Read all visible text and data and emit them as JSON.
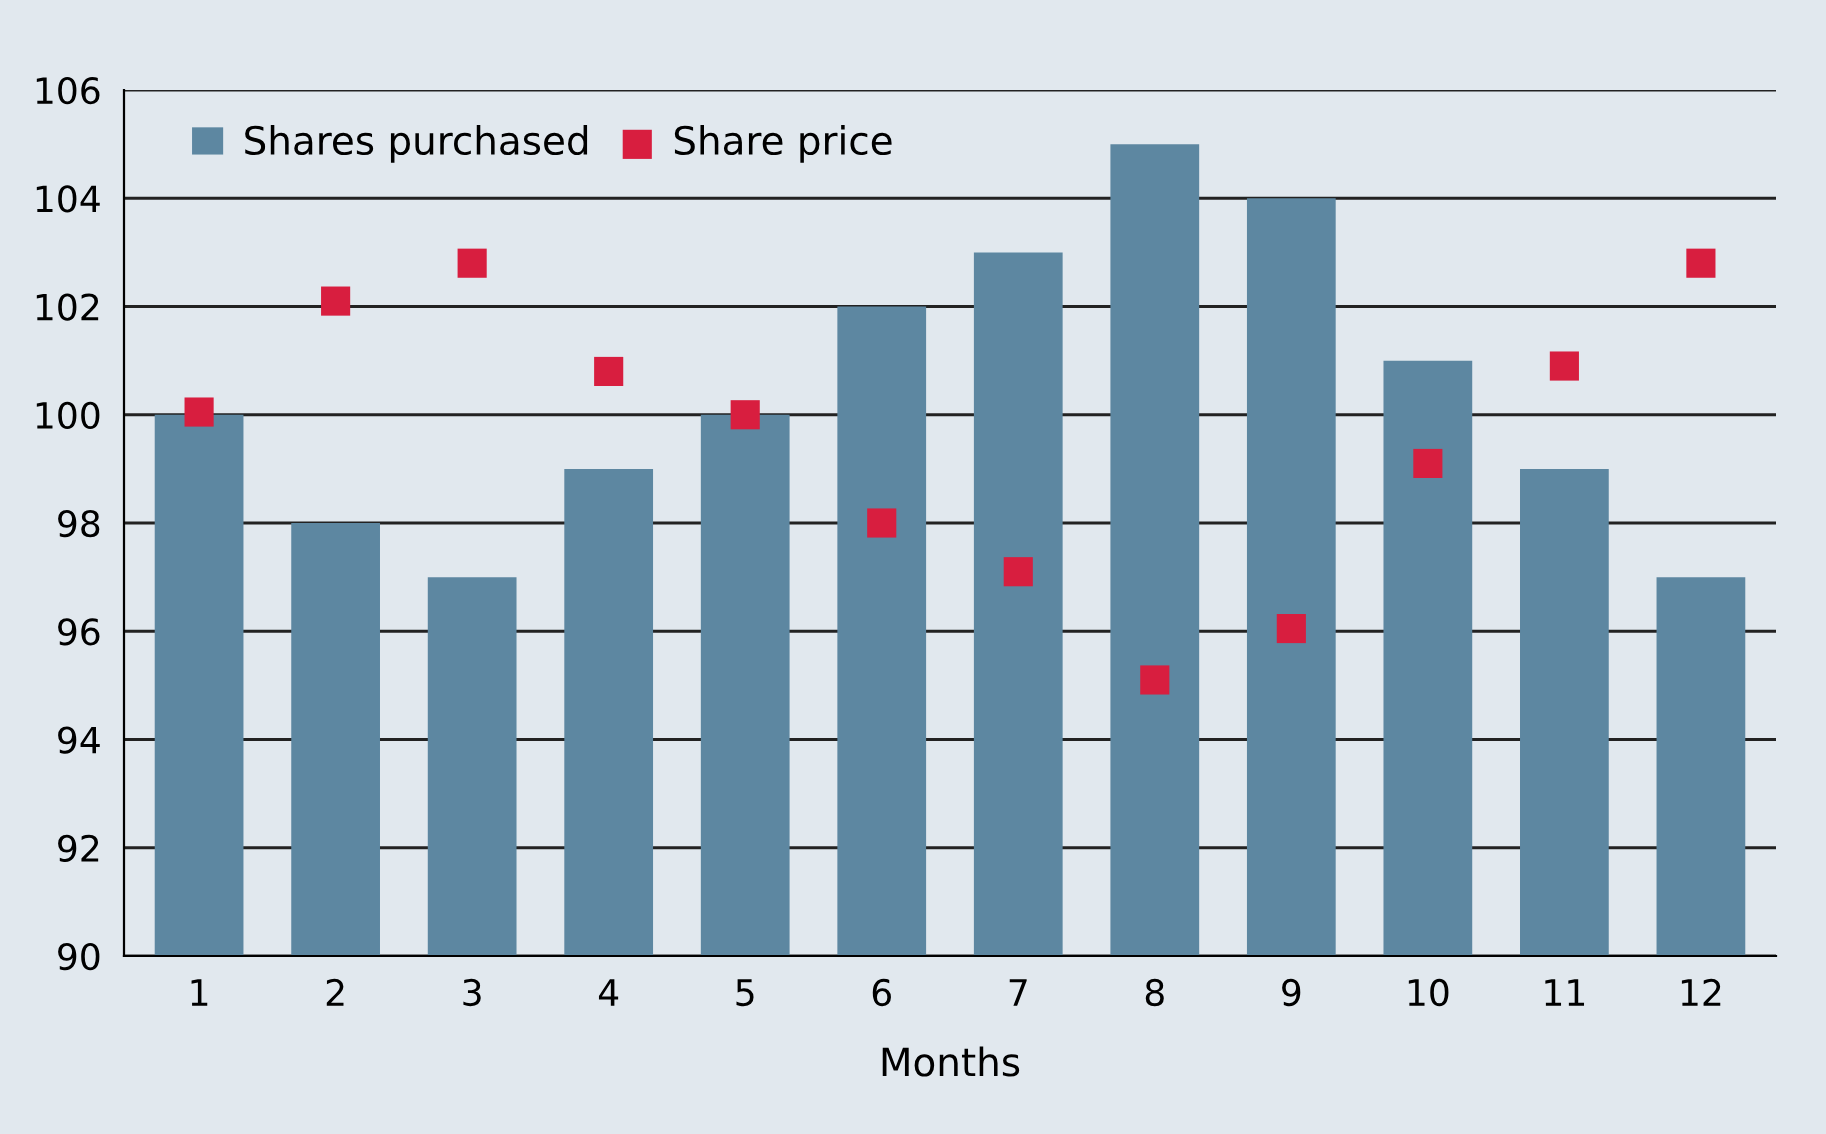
{
  "chart_data": {
    "type": "bar",
    "xlabel": "Months",
    "categories": [
      "1",
      "2",
      "3",
      "4",
      "5",
      "6",
      "7",
      "8",
      "9",
      "10",
      "11",
      "12"
    ],
    "series": [
      {
        "name": "Shares purchased",
        "color": "#5d87a1",
        "values": [
          100,
          98,
          97,
          99,
          100,
          102,
          103,
          105,
          104,
          101,
          99,
          97
        ]
      },
      {
        "name": "Share price",
        "type": "scatter",
        "color": "#d81e3f",
        "values": [
          100.05,
          102.1,
          102.8,
          100.8,
          100,
          98,
          97.1,
          95.1,
          96.05,
          99.1,
          100.9,
          102.8
        ]
      }
    ],
    "ylim": [
      90,
      106
    ],
    "yticks": [
      90,
      92,
      94,
      96,
      98,
      100,
      102,
      104,
      106
    ],
    "grid": "y",
    "legend": "top left",
    "marker": "square"
  }
}
